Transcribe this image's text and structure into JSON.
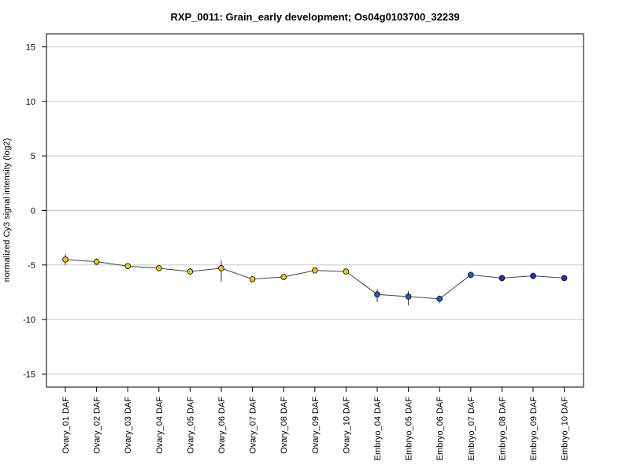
{
  "chart_data": {
    "type": "line",
    "title": "RXP_0011: Grain_early development; Os04g0103700_32239",
    "xlabel": "",
    "ylabel": "normalized Cy3 signal intensity (log2)",
    "ylim": [
      -16.2,
      16.2
    ],
    "yticks": [
      -15,
      -10,
      -5,
      0,
      5,
      10,
      15
    ],
    "grid": true,
    "categories": [
      "Ovary_01 DAF",
      "Ovary_02 DAF",
      "Ovary_03 DAF",
      "Ovary_04 DAF",
      "Ovary_05 DAF",
      "Ovary_06 DAF",
      "Ovary_07 DAF",
      "Ovary_08 DAF",
      "Ovary_09 DAF",
      "Ovary_10 DAF",
      "Embryo_04 DAF",
      "Embryo_05 DAF",
      "Embryo_06 DAF",
      "Embryo_07 DAF",
      "Embryo_08 DAF",
      "Embryo_09 DAF",
      "Embryo_10 DAF"
    ],
    "series": [
      {
        "values": [
          -4.5,
          -4.7,
          -5.1,
          -5.3,
          -5.6,
          -5.3,
          -6.3,
          -6.1,
          -5.5,
          -5.6,
          -7.7,
          -7.9,
          -8.1,
          -5.9,
          -6.2,
          -6.0,
          -6.2
        ],
        "err_low": [
          -5.0,
          -5.0,
          -5.2,
          -5.4,
          -5.9,
          -6.5,
          -6.4,
          -6.2,
          -5.6,
          -5.7,
          -8.4,
          -8.7,
          -8.5,
          -6.0,
          -6.5,
          -6.3,
          -6.3
        ],
        "err_high": [
          -4.0,
          -4.4,
          -5.0,
          -5.2,
          -5.3,
          -4.6,
          -6.2,
          -6.0,
          -5.4,
          -5.5,
          -7.2,
          -7.4,
          -7.8,
          -5.8,
          -6.0,
          -5.7,
          -6.1
        ],
        "point_colors": [
          "#e8c81e",
          "#e8c81e",
          "#e8c81e",
          "#e8c81e",
          "#e8c81e",
          "#e8c81e",
          "#e8c81e",
          "#e8c81e",
          "#e8c81e",
          "#e8c81e",
          "#2b56c4",
          "#2b56c4",
          "#2b56c4",
          "#2b56c4",
          "#1e2fc0",
          "#1e2fc0",
          "#1e2fc0"
        ]
      }
    ]
  }
}
